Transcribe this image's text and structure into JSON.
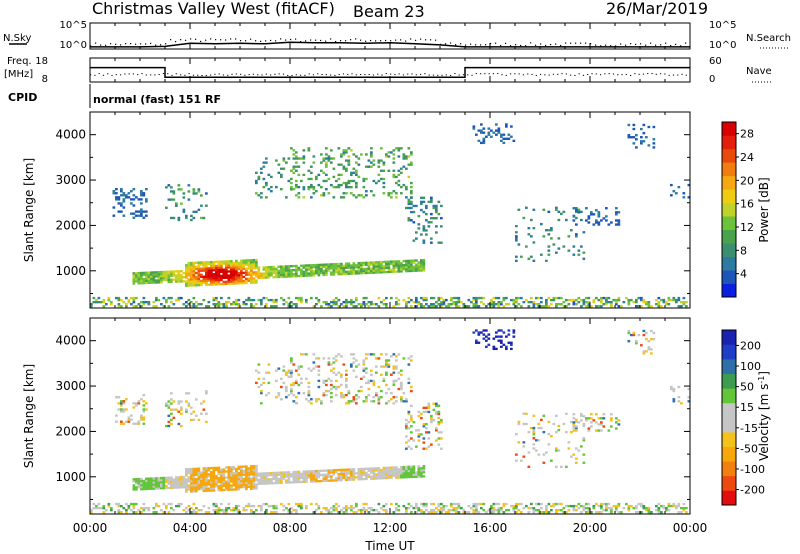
{
  "header": {
    "title": "Christmas Valley West (fitACF)",
    "beam": "Beam 23",
    "date": "26/Mar/2019"
  },
  "colors": {
    "power_scale": [
      "#0b1fe0",
      "#1e55b8",
      "#2c7aa0",
      "#3b8f6e",
      "#4aa24c",
      "#6cc23a",
      "#bfd22a",
      "#f0cc10",
      "#f5a812",
      "#f07d10",
      "#e84a0c",
      "#e31e0a",
      "#d80000"
    ],
    "velocity_scale": [
      "#e40d0d",
      "#ee4a10",
      "#f2800e",
      "#f5a70c",
      "#f4c21a",
      "#c6c6c6",
      "#c6c6c6",
      "#62c53a",
      "#3c9c4f",
      "#2f6fa8",
      "#1f3ec8",
      "#1a22b0"
    ],
    "noise_line": "#000000"
  },
  "chart_data": [
    {
      "type": "line",
      "panel": "noise",
      "left_label": "N.Sky",
      "left_ticks": [
        "10^5",
        "10^0"
      ],
      "right_label": "N.Search",
      "right_ticks": [
        "10^5",
        "10^0"
      ],
      "x": [
        0,
        1,
        2,
        3,
        4,
        5,
        6,
        7,
        8,
        9,
        10,
        11,
        12,
        13,
        14,
        15,
        16,
        17,
        18,
        19,
        20,
        21,
        22,
        23,
        24
      ],
      "values": [
        0.4,
        0.4,
        0.4,
        0.5,
        1.1,
        1.0,
        1.1,
        1.0,
        1.3,
        1.2,
        1.2,
        1.1,
        1.2,
        1.0,
        0.8,
        0.4,
        0.4,
        0.4,
        0.4,
        0.4,
        0.4,
        0.4,
        0.4,
        0.4,
        0.4
      ]
    },
    {
      "type": "line",
      "panel": "frequency",
      "left_label": "Freq.",
      "left_unit": "[MHz]",
      "left_ticks": [
        "18",
        "8"
      ],
      "right_label": "Nave",
      "right_ticks": [
        "60",
        "0"
      ],
      "cpid_label": "CPID",
      "cpid_text": "normal (fast) 151 RF",
      "x": [
        0,
        3,
        3,
        15,
        15,
        24
      ],
      "frequency": [
        14,
        14,
        10,
        10,
        14,
        14
      ],
      "nave": [
        20,
        20,
        20,
        20,
        20,
        20
      ]
    },
    {
      "type": "heatmap",
      "panel": "power",
      "ylabel": "Slant Range [km]",
      "xlim": [
        0,
        24
      ],
      "ylim": [
        180,
        4500
      ],
      "yticks": [
        1000,
        2000,
        3000,
        4000
      ],
      "colorbar_label": "Power [dB]",
      "colorbar_range": [
        0,
        30
      ],
      "colorbar_ticks": [
        "4",
        "8",
        "12",
        "16",
        "20",
        "24",
        "28"
      ],
      "colorbar_tick_values": [
        4,
        8,
        12,
        16,
        20,
        24,
        28
      ]
    },
    {
      "type": "heatmap",
      "panel": "velocity",
      "ylabel": "Slant Range [km]",
      "xlabel": "Time UT",
      "xlim": [
        0,
        24
      ],
      "ylim": [
        180,
        4500
      ],
      "yticks": [
        1000,
        2000,
        3000,
        4000
      ],
      "xticks": [
        "00:00",
        "04:00",
        "08:00",
        "12:00",
        "16:00",
        "20:00",
        "00:00"
      ],
      "colorbar_label": "Velocity [m s",
      "colorbar_sup": "-1",
      "colorbar_label_end": "]",
      "colorbar_ticks": [
        "200",
        "100",
        "50",
        "15",
        "-15",
        "-50",
        "-100",
        "-200"
      ]
    }
  ]
}
